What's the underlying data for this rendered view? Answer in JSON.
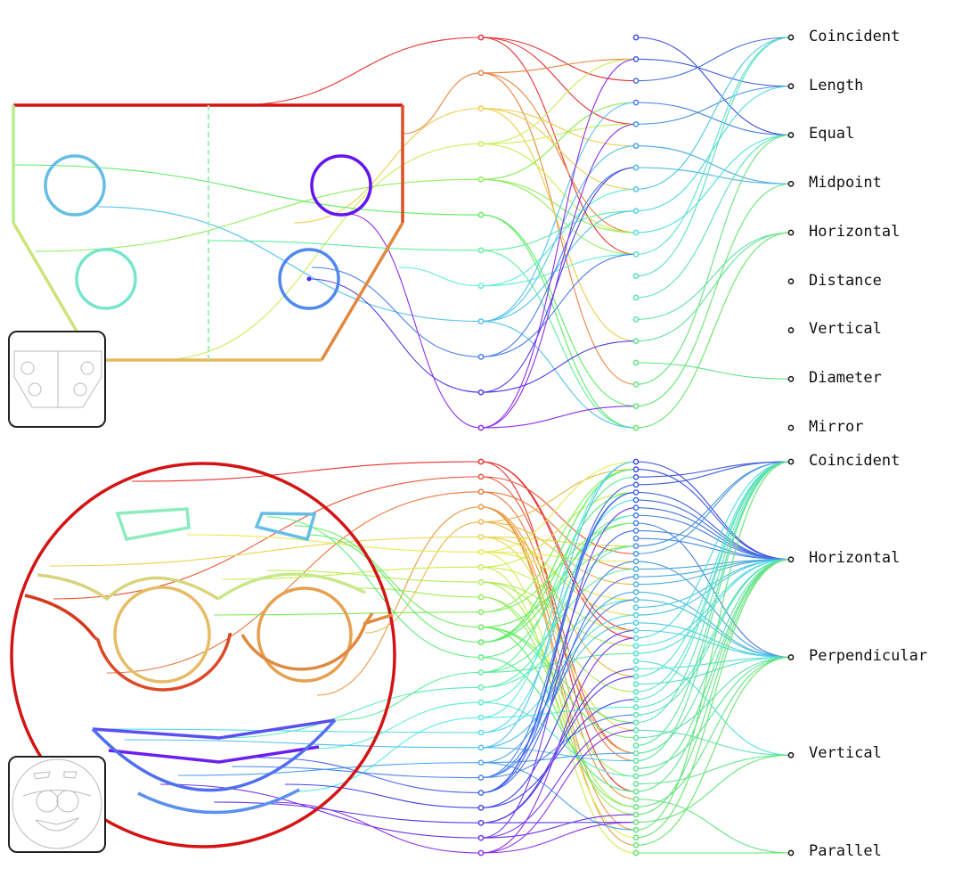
{
  "top_panel": {
    "constraint_labels": [
      "Coincident",
      "Length",
      "Equal",
      "Midpoint",
      "Horizontal",
      "Distance",
      "Vertical",
      "Diameter",
      "Mirror"
    ]
  },
  "bottom_panel": {
    "constraint_labels": [
      "Coincident",
      "Horizontal",
      "Perpendicular",
      "Vertical",
      "Parallel"
    ]
  },
  "colors": {
    "label_node": "#111111",
    "thumbnail_stroke": "#bbbbbb",
    "frame": "#222222"
  }
}
